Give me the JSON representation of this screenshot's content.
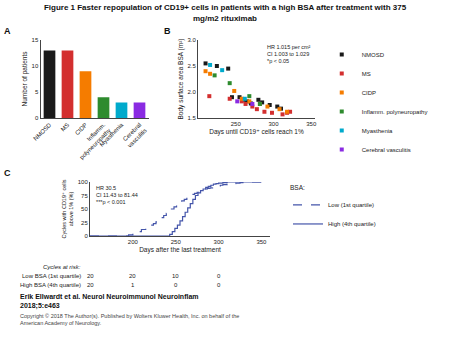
{
  "title": "Figure 1 Faster repopulation of CD19+ cells in patients with a high BSA after treatment with 375\nmg/m2 rituximab",
  "annotations": [
    "Erik Ellwardt et al. Neurol Neuroimmunol Neuroinflam\n2018;5:e463",
    "Copyright © 2018 The Author(s). Published by Wolters Kluwer Health, Inc. on behalf of the\nAmerican Academy of Neurology."
  ],
  "chart_data": [
    {
      "type": "bar",
      "title": "A",
      "categories": [
        "NMOSD",
        "MS",
        "CIDP",
        "Inflamm.\npolyneuropathy",
        "Myasthenia",
        "Cerebral\nvasculitis"
      ],
      "values": [
        13,
        13,
        9,
        4,
        3,
        3
      ],
      "colors": [
        "#1a1a1a",
        "#d32f2f",
        "#f57c00",
        "#2e8b2e",
        "#00aacc",
        "#8a2be2"
      ],
      "ylabel": "Number of patients",
      "ylim": [
        0,
        15
      ],
      "yticks": [
        0,
        5,
        10,
        15
      ],
      "grid": false
    },
    {
      "type": "scatter",
      "title": "B",
      "annotations": [
        "HR 1.015 per cm²\nCI 1.003 to 1.029\n*p < 0.05"
      ],
      "xlabel": "Days until CD19⁺ cells reach 1%",
      "ylabel": "Body surface area BSA (m²)",
      "xlim": [
        200,
        355
      ],
      "ylim": [
        1.5,
        3.0
      ],
      "xticks": [
        250,
        300,
        350
      ],
      "yticks": [
        1.5,
        {
          "value": 2.0,
          "label": "2.0"
        },
        2.5,
        {
          "value": 3.0,
          "label": "3.0"
        }
      ],
      "marker": "square",
      "legend": "right",
      "grid": false,
      "series": [
        {
          "name": "NMOSD",
          "color": "#1a1a1a",
          "x": [
            210,
            225,
            240,
            245,
            255,
            260,
            265,
            270,
            280,
            285,
            295,
            305,
            310
          ],
          "values": [
            2.55,
            2.5,
            2.45,
            1.9,
            1.9,
            1.85,
            1.82,
            1.78,
            1.85,
            1.8,
            1.75,
            1.72,
            1.68
          ]
        },
        {
          "name": "MS",
          "color": "#d32f2f",
          "x": [
            215,
            242,
            258,
            263,
            272,
            278,
            288,
            298,
            312,
            318,
            322
          ],
          "values": [
            1.92,
            1.87,
            1.82,
            1.77,
            1.72,
            1.67,
            1.62,
            1.6,
            1.57,
            1.6,
            1.62
          ]
        },
        {
          "name": "CIDP",
          "color": "#f57c00",
          "x": [
            210,
            216,
            248,
            258,
            268,
            282,
            292,
            308,
            318
          ],
          "values": [
            2.4,
            2.35,
            2.02,
            1.87,
            1.82,
            1.77,
            1.72,
            1.67,
            1.62
          ]
        },
        {
          "name": "Inflamm. polyneuropathy",
          "color": "#2e8b2e",
          "x": [
            222,
            242,
            268,
            282
          ],
          "values": [
            2.32,
            2.17,
            1.92,
            1.77
          ]
        },
        {
          "name": "Myasthenia",
          "color": "#00aacc",
          "x": [
            216,
            232,
            262
          ],
          "values": [
            2.52,
            2.42,
            1.87
          ]
        },
        {
          "name": "Cerebral vasculitis",
          "color": "#8a2be2",
          "x": [
            252,
            272
          ],
          "values": [
            1.82,
            1.77
          ]
        }
      ]
    },
    {
      "type": "step",
      "title": "C",
      "annotations": [
        "HR 30.5\nCI 11.43 to 81.44\n***p < 0.001"
      ],
      "xlabel": "Days after the last treatment",
      "ylabel": "Cycles with CD19⁺ cells\nabove 1% (%)",
      "xlim": [
        150,
        360
      ],
      "ylim": [
        0,
        100
      ],
      "xticks": [
        200,
        250,
        300,
        350
      ],
      "yticks": [
        0,
        25,
        50,
        75,
        100
      ],
      "legend": "right",
      "legend_title": "BSA:",
      "grid": false,
      "series": [
        {
          "name": "Low (1st quartile)",
          "color": "#4455aa",
          "line_style": "dashed",
          "x": [
            150,
            190,
            195,
            200,
            205,
            210,
            215,
            218,
            221,
            224,
            227,
            230,
            233,
            236,
            239,
            242,
            245,
            248,
            251,
            254,
            257,
            260,
            263,
            266,
            269,
            272,
            275,
            278,
            281,
            284,
            287,
            290,
            293,
            296,
            299,
            302,
            305,
            310,
            315,
            320,
            325,
            330,
            340,
            350
          ],
          "values": [
            0,
            0,
            2,
            5,
            8,
            12,
            16,
            18,
            20,
            23,
            26,
            30,
            34,
            38,
            42,
            46,
            50,
            54,
            58,
            62,
            65,
            68,
            71,
            74,
            77,
            79,
            81,
            83,
            85,
            87,
            88,
            89,
            91,
            92,
            93,
            94,
            95,
            96,
            97,
            98,
            99,
            100,
            100,
            100
          ]
        },
        {
          "name": "High (4th quartile)",
          "color": "#4455aa",
          "line_style": "solid",
          "x": [
            150,
            240,
            243,
            246,
            249,
            252,
            255,
            258,
            261,
            264,
            267,
            270,
            273,
            276,
            279,
            282,
            285,
            288,
            291,
            294,
            297,
            300,
            305,
            310,
            320,
            350
          ],
          "values": [
            0,
            0,
            3,
            8,
            14,
            20,
            28,
            36,
            44,
            52,
            60,
            68,
            75,
            80,
            84,
            87,
            90,
            92,
            94,
            96,
            97,
            98,
            99,
            100,
            100,
            100
          ]
        }
      ],
      "table": {
        "title": "Cycles at risk:",
        "x": [
          150,
          200,
          250,
          300
        ],
        "rows": [
          {
            "name": "Low BSA (1st quartile)",
            "values": [
              20,
              20,
              10,
              0
            ]
          },
          {
            "name": "High BSA (4th quartile)",
            "values": [
              20,
              1,
              0,
              0
            ]
          }
        ]
      }
    }
  ]
}
